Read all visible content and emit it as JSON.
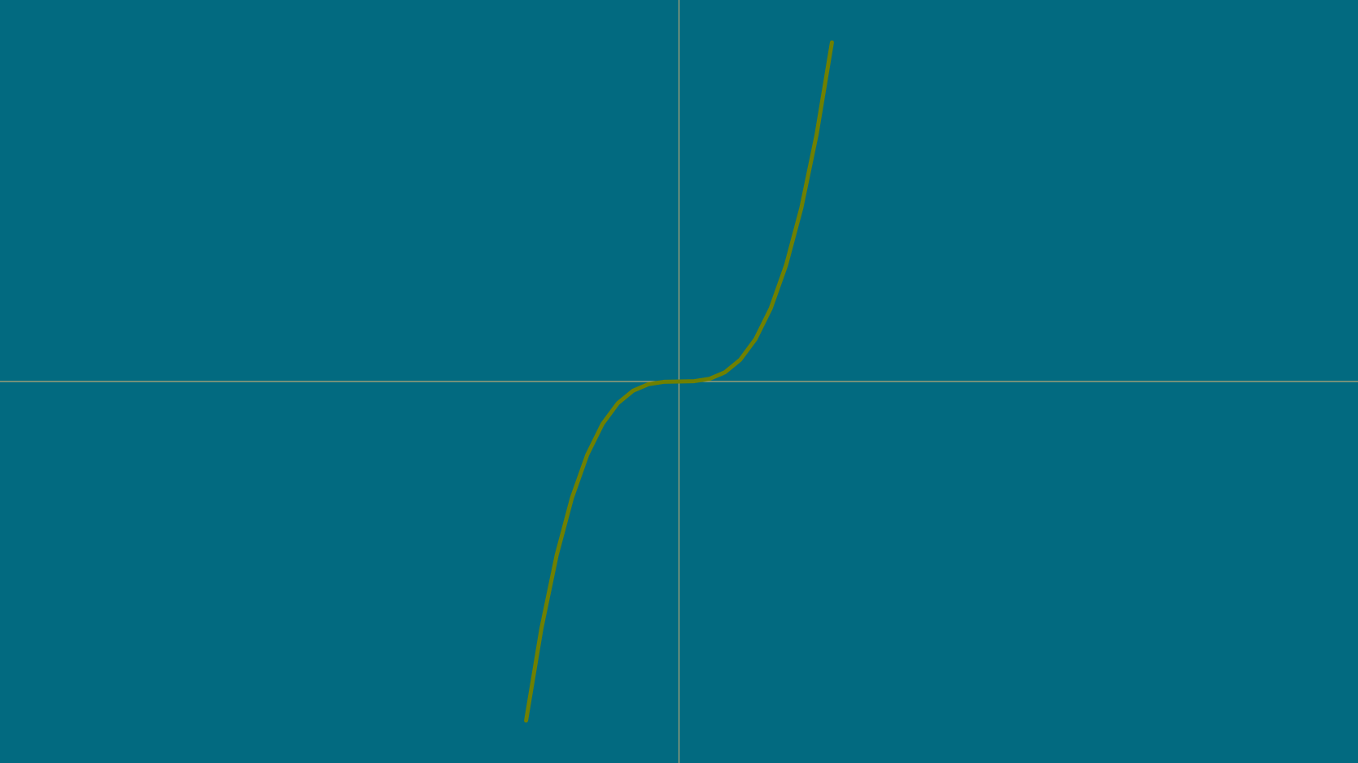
{
  "colors": {
    "background": "#026a80",
    "axis": "#b7a877",
    "curve": "#6f8000"
  },
  "chart_data": {
    "type": "line",
    "title": "",
    "xlabel": "",
    "ylabel": "",
    "grid": false,
    "legend": "none",
    "axes_through_origin": true,
    "xlim": [
      -4.44,
      4.44
    ],
    "ylim": [
      -4.5,
      4.5
    ],
    "series": [
      {
        "x": [
          -1.0,
          -0.9,
          -0.8,
          -0.7,
          -0.6,
          -0.5,
          -0.4,
          -0.3,
          -0.2,
          -0.1,
          0.0,
          0.1,
          0.2,
          0.3,
          0.4,
          0.5,
          0.6,
          0.7,
          0.8,
          0.9,
          1.0
        ],
        "y": [
          -4.0,
          -2.916,
          -2.048,
          -1.372,
          -0.864,
          -0.5,
          -0.256,
          -0.108,
          -0.032,
          -0.004,
          0.0,
          0.004,
          0.032,
          0.108,
          0.256,
          0.5,
          0.864,
          1.372,
          2.048,
          2.916,
          4.0
        ]
      }
    ]
  }
}
